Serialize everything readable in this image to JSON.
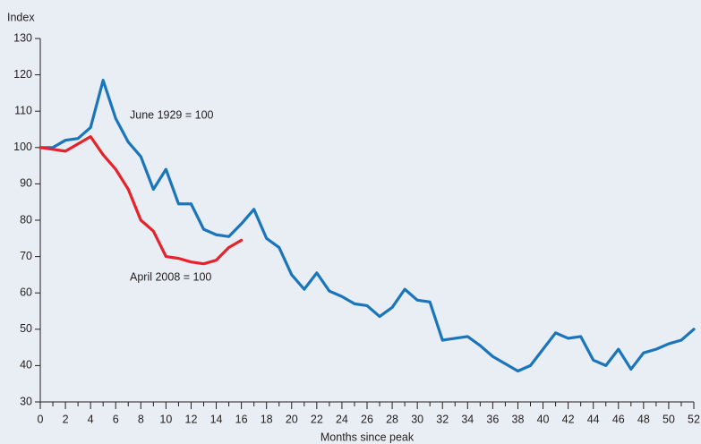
{
  "chart_data": {
    "type": "line",
    "y_label": "Index",
    "x_label": "Months since peak",
    "annotations": [
      "June 1929 = 100",
      "April 2008 = 100"
    ],
    "x": [
      0,
      1,
      2,
      3,
      4,
      5,
      6,
      7,
      8,
      9,
      10,
      11,
      12,
      13,
      14,
      15,
      16,
      17,
      18,
      19,
      20,
      21,
      22,
      23,
      24,
      25,
      26,
      27,
      28,
      29,
      30,
      31,
      32,
      33,
      34,
      35,
      36,
      37,
      38,
      39,
      40,
      41,
      42,
      43,
      44,
      45,
      46,
      47,
      48,
      49,
      50,
      51,
      52
    ],
    "series": [
      {
        "name": "June 1929 = 100",
        "color": "#1a75bb",
        "values": [
          100,
          100,
          102,
          102.5,
          105.5,
          118.5,
          108,
          101.5,
          97.5,
          88.5,
          94,
          84.5,
          84.5,
          77.5,
          76,
          75.5,
          79,
          83,
          75,
          72.5,
          65,
          61,
          65.5,
          60.5,
          59,
          57,
          56.5,
          53.5,
          56,
          61,
          58,
          57.5,
          47,
          47.5,
          48,
          45.5,
          42.5,
          40.5,
          38.5,
          40,
          44.5,
          49,
          47.5,
          48,
          41.5,
          40,
          44.5,
          39,
          43.5,
          44.5,
          46,
          47,
          50
        ]
      },
      {
        "name": "April 2008 = 100",
        "color": "#e4232b",
        "values": [
          100,
          99.5,
          99,
          101,
          103,
          98,
          94,
          88.5,
          80,
          77,
          70,
          69.5,
          68.5,
          68,
          69,
          72.5,
          74.5,
          null,
          null,
          null,
          null,
          null,
          null,
          null,
          null,
          null,
          null,
          null,
          null,
          null,
          null,
          null,
          null,
          null,
          null,
          null,
          null,
          null,
          null,
          null,
          null,
          null,
          null,
          null,
          null,
          null,
          null,
          null,
          null,
          null,
          null,
          null,
          null
        ]
      }
    ],
    "xlim": [
      0,
      52
    ],
    "xticks": [
      0,
      2,
      4,
      6,
      8,
      10,
      12,
      14,
      16,
      18,
      20,
      22,
      24,
      26,
      28,
      30,
      32,
      34,
      36,
      38,
      40,
      42,
      44,
      46,
      48,
      50,
      52
    ],
    "ylim": [
      30,
      130
    ],
    "yticks": [
      30,
      40,
      50,
      60,
      70,
      80,
      90,
      100,
      110,
      120,
      130
    ],
    "grid": false
  }
}
